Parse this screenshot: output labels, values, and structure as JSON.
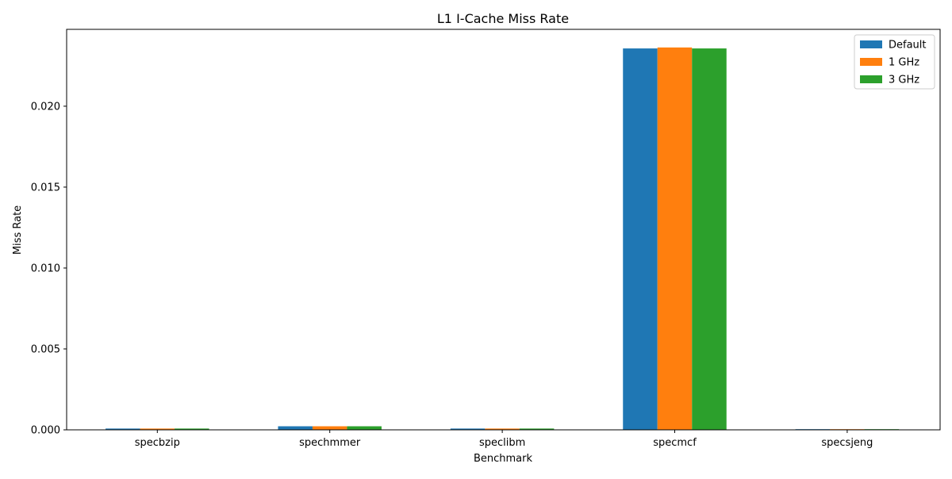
{
  "chart_data": {
    "type": "bar",
    "title": "L1 I-Cache Miss Rate",
    "xlabel": "Benchmark",
    "ylabel": "Miss Rate",
    "categories": [
      "specbzip",
      "spechmmer",
      "speclibm",
      "specmcf",
      "specsjeng"
    ],
    "series": [
      {
        "name": "Default",
        "color": "#1f77b4",
        "values": [
          8e-05,
          0.00022,
          8e-05,
          0.02357,
          4e-05
        ]
      },
      {
        "name": "1 GHz",
        "color": "#ff7f0e",
        "values": [
          8e-05,
          0.00022,
          8e-05,
          0.02363,
          4e-05
        ]
      },
      {
        "name": "3 GHz",
        "color": "#2ca02c",
        "values": [
          8e-05,
          0.00022,
          8e-05,
          0.02357,
          4e-05
        ]
      }
    ],
    "ylim": [
      0,
      0.02475
    ],
    "yticks": [
      0.0,
      0.005,
      0.01,
      0.015,
      0.02
    ],
    "ytick_labels": [
      "0.000",
      "0.005",
      "0.010",
      "0.015",
      "0.020"
    ],
    "grid": false,
    "legend_position": "top-right"
  }
}
